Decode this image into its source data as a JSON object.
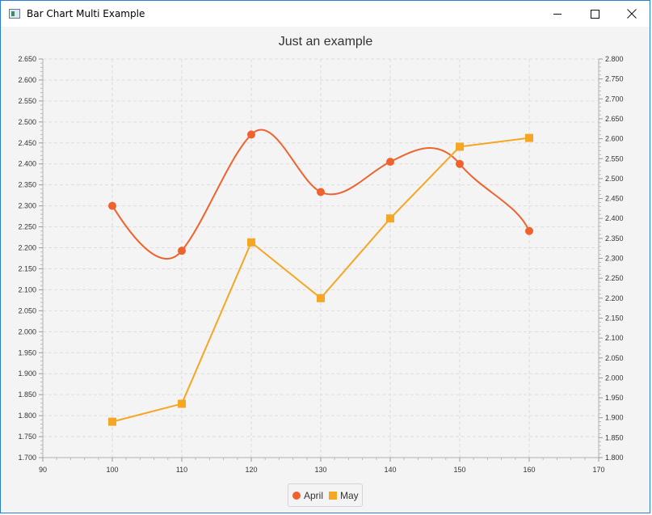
{
  "window": {
    "title": "Bar Chart Multi Example",
    "controls": {
      "minimize": "minimize",
      "maximize": "maximize",
      "close": "close"
    }
  },
  "chart_data": {
    "type": "line",
    "title": "Just an example",
    "xlabel": "",
    "ylabel": "",
    "x_ticks": [
      "90",
      "100",
      "110",
      "120",
      "130",
      "140",
      "150",
      "160",
      "170"
    ],
    "xlim": [
      90,
      170
    ],
    "y_left": {
      "lim": [
        1.7,
        2.65
      ],
      "ticks": [
        "1.700",
        "1.750",
        "1.800",
        "1.850",
        "1.900",
        "1.950",
        "2.000",
        "2.050",
        "2.100",
        "2.150",
        "2.200",
        "2.250",
        "2.300",
        "2.350",
        "2.400",
        "2.450",
        "2.500",
        "2.550",
        "2.600",
        "2.650"
      ]
    },
    "y_right": {
      "lim": [
        1.8,
        2.8
      ],
      "ticks": [
        "1.800",
        "1.850",
        "1.900",
        "1.950",
        "2.000",
        "2.050",
        "2.100",
        "2.150",
        "2.200",
        "2.250",
        "2.300",
        "2.350",
        "2.400",
        "2.450",
        "2.500",
        "2.550",
        "2.600",
        "2.650",
        "2.700",
        "2.750",
        "2.800"
      ]
    },
    "grid": true,
    "legend_position": "bottom",
    "series": [
      {
        "name": "April",
        "axis": "left",
        "smooth": true,
        "marker": "circle",
        "color": "#f0622d",
        "x": [
          100,
          110,
          120,
          130,
          140,
          150,
          160
        ],
        "values": [
          2.3,
          2.193,
          2.47,
          2.333,
          2.405,
          2.4,
          2.24
        ]
      },
      {
        "name": "May",
        "axis": "right",
        "smooth": false,
        "marker": "square",
        "color": "#f5a623",
        "x": [
          100,
          110,
          120,
          130,
          140,
          150,
          160
        ],
        "values": [
          1.89,
          1.935,
          2.34,
          2.2,
          2.4,
          2.58,
          2.602
        ]
      }
    ]
  }
}
